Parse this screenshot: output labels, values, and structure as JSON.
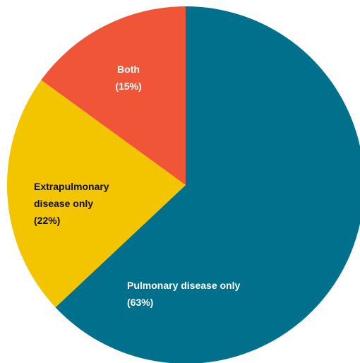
{
  "chart_data": {
    "type": "pie",
    "categories": [
      "Pulmonary disease only",
      "Extrapulmonary disease only",
      "Both"
    ],
    "values": [
      63,
      22,
      15
    ],
    "value_labels": [
      "(63%)",
      "(22%)",
      "(15%)"
    ],
    "colors": [
      "#00708c",
      "#f2c500",
      "#f05537"
    ]
  }
}
